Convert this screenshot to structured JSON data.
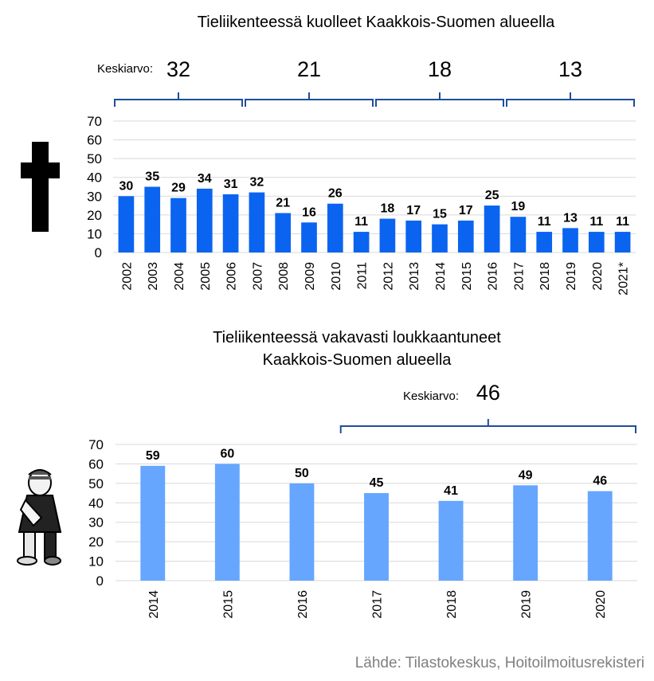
{
  "source": "Lähde: Tilastokeskus, Hoitoilmoitusrekisteri",
  "chart_data": [
    {
      "type": "bar",
      "title": "Tieliikenteessä kuolleet Kaakkois-Suomen alueella",
      "categories": [
        "2002",
        "2003",
        "2004",
        "2005",
        "2006",
        "2007",
        "2008",
        "2009",
        "2010",
        "2011",
        "2012",
        "2013",
        "2014",
        "2015",
        "2016",
        "2017",
        "2018",
        "2019",
        "2020",
        "2021*"
      ],
      "values": [
        30,
        35,
        29,
        34,
        31,
        32,
        21,
        16,
        26,
        11,
        18,
        17,
        15,
        17,
        25,
        19,
        11,
        13,
        11,
        11
      ],
      "ylim": [
        0,
        70
      ],
      "yticks": [
        0,
        10,
        20,
        30,
        40,
        50,
        60,
        70
      ],
      "color": "#0a64f0",
      "grid": true,
      "average_label": "Keskiarvo:",
      "averages": [
        {
          "value": "32",
          "from": "2002",
          "to": "2006"
        },
        {
          "value": "21",
          "from": "2007",
          "to": "2011"
        },
        {
          "value": "18",
          "from": "2012",
          "to": "2016"
        },
        {
          "value": "13",
          "from": "2017",
          "to": "2021*"
        }
      ],
      "icon": "cross-icon"
    },
    {
      "type": "bar",
      "title": [
        "Tieliikenteessä vakavasti loukkaantuneet",
        "Kaakkois-Suomen alueella"
      ],
      "categories": [
        "2014",
        "2015",
        "2016",
        "2017",
        "2018",
        "2019",
        "2020"
      ],
      "values": [
        59,
        60,
        50,
        45,
        41,
        49,
        46
      ],
      "ylim": [
        0,
        70
      ],
      "yticks": [
        0,
        10,
        20,
        30,
        40,
        50,
        60,
        70
      ],
      "color": "#66a6ff",
      "grid": true,
      "average_label": "Keskiarvo:",
      "averages": [
        {
          "value": "46",
          "from": "2017",
          "to": "2020"
        }
      ],
      "icon": "injured-person-icon"
    }
  ]
}
